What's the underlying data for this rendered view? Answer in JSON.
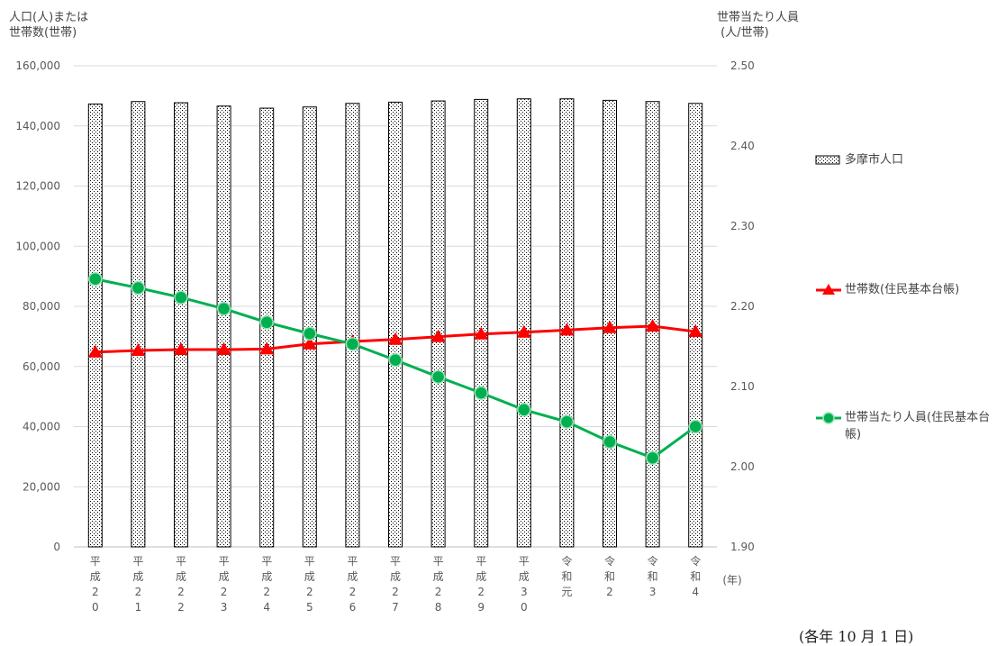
{
  "chart_data": {
    "type": "bar",
    "title": "",
    "left_axis_label": "人口(人)または\n世帯数(世帯)",
    "right_axis_label": "世帯当たり人員\n (人/世帯)",
    "x_unit_label": "(年)",
    "note": "(各年 10 月 1 日)",
    "ylim_left": [
      0,
      160000
    ],
    "yticks_left": [
      "0",
      "20,000",
      "40,000",
      "60,000",
      "80,000",
      "100,000",
      "120,000",
      "140,000",
      "160,000"
    ],
    "ylim_right": [
      1.9,
      2.5
    ],
    "yticks_right": [
      "1.90",
      "2.00",
      "2.10",
      "2.20",
      "2.30",
      "2.40",
      "2.50"
    ],
    "grid": true,
    "legend_position": "right",
    "categories": [
      [
        "平",
        "成",
        "2",
        "0"
      ],
      [
        "平",
        "成",
        "2",
        "1"
      ],
      [
        "平",
        "成",
        "2",
        "2"
      ],
      [
        "平",
        "成",
        "2",
        "3"
      ],
      [
        "平",
        "成",
        "2",
        "4"
      ],
      [
        "平",
        "成",
        "2",
        "5"
      ],
      [
        "平",
        "成",
        "2",
        "6"
      ],
      [
        "平",
        "成",
        "2",
        "7"
      ],
      [
        "平",
        "成",
        "2",
        "8"
      ],
      [
        "平",
        "成",
        "2",
        "9"
      ],
      [
        "平",
        "成",
        "3",
        "0"
      ],
      [
        "令",
        "和",
        "元"
      ],
      [
        "令",
        "和",
        "2"
      ],
      [
        "令",
        "和",
        "3"
      ],
      [
        "令",
        "和",
        "4"
      ]
    ],
    "series": [
      {
        "name": "多摩市人口",
        "type": "bar",
        "axis": "left",
        "color": "#000000",
        "values": [
          147300,
          148100,
          147700,
          146600,
          145900,
          146300,
          147500,
          147900,
          148300,
          148800,
          149000,
          149000,
          148500,
          148100,
          147500
        ]
      },
      {
        "name": "世帯数(住民基本台帳)",
        "type": "line",
        "axis": "left",
        "marker": "triangle",
        "color": "#ff0000",
        "values": [
          64800,
          65300,
          65600,
          65600,
          65800,
          67500,
          68300,
          69000,
          69900,
          70800,
          71400,
          72100,
          72900,
          73400,
          71600
        ]
      },
      {
        "name": "世帯当たり人員(住民基本台帳)",
        "type": "line",
        "axis": "right",
        "marker": "circle",
        "color": "#00b050",
        "values": [
          2.234,
          2.223,
          2.211,
          2.197,
          2.18,
          2.166,
          2.153,
          2.133,
          2.112,
          2.092,
          2.071,
          2.056,
          2.031,
          2.011,
          2.05
        ]
      }
    ]
  }
}
